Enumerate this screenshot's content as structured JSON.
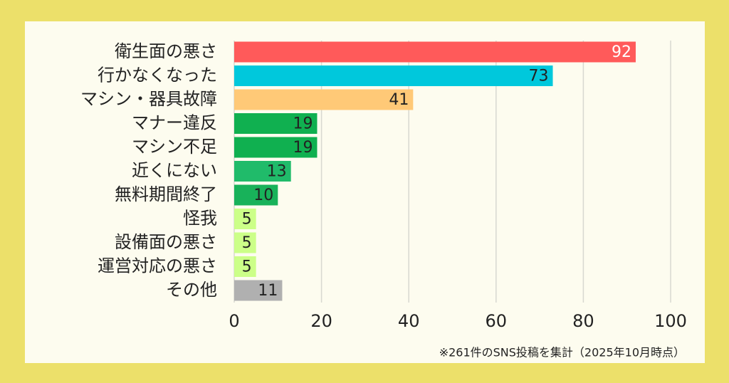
{
  "chart_data": {
    "type": "bar",
    "orientation": "horizontal",
    "categories": [
      "衛生面の悪さ",
      "行かなくなった",
      "マシン・器具故障",
      "マナー違反",
      "マシン不足",
      "近くにない",
      "無料期間終了",
      "怪我",
      "設備面の悪さ",
      "運営対応の悪さ",
      "その他"
    ],
    "values": [
      92,
      73,
      41,
      19,
      19,
      13,
      10,
      5,
      5,
      5,
      11
    ],
    "colors": [
      "#ff5a5a",
      "#00c8dc",
      "#ffc977",
      "#10b050",
      "#10b050",
      "#20bb6a",
      "#18b25a",
      "#ccff88",
      "#ccff88",
      "#ccff88",
      "#b0b0b0"
    ],
    "xlim": [
      0,
      100
    ],
    "xticks": [
      0,
      20,
      40,
      60,
      80,
      100
    ],
    "grid": true,
    "annotation": "※261件のSNS投稿を集計（2025年10月時点）"
  }
}
